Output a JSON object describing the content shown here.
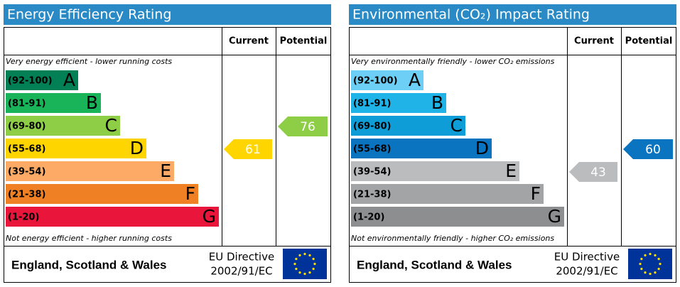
{
  "panels": [
    {
      "title": "Energy Efficiency Rating",
      "headers": [
        "Current",
        "Potential"
      ],
      "top_note": "Very energy efficient - lower running costs",
      "bottom_note": "Not energy efficient - higher running costs",
      "bands": [
        {
          "range": "(92-100)",
          "letter": "A",
          "color": "#008054"
        },
        {
          "range": "(81-91)",
          "letter": "B",
          "color": "#19b459"
        },
        {
          "range": "(69-80)",
          "letter": "C",
          "color": "#8dce46"
        },
        {
          "range": "(55-68)",
          "letter": "D",
          "color": "#ffd500"
        },
        {
          "range": "(39-54)",
          "letter": "E",
          "color": "#fcaa65"
        },
        {
          "range": "(21-38)",
          "letter": "F",
          "color": "#ef8023"
        },
        {
          "range": "(1-20)",
          "letter": "G",
          "color": "#e9153b"
        }
      ],
      "current": 61,
      "potential": 76,
      "footer": {
        "region": "England, Scotland & Wales",
        "directive": [
          "EU Directive",
          "2002/91/EC"
        ]
      }
    },
    {
      "title": "Environmental (CO₂) Impact Rating",
      "headers": [
        "Current",
        "Potential"
      ],
      "top_note": "Very environmentally friendly - lower CO₂ emissions",
      "bottom_note": "Not environmentally friendly - higher CO₂ emissions",
      "bands": [
        {
          "range": "(92-100)",
          "letter": "A",
          "color": "#6ecff6"
        },
        {
          "range": "(81-91)",
          "letter": "B",
          "color": "#1fb3e8"
        },
        {
          "range": "(69-80)",
          "letter": "C",
          "color": "#0f9dd8"
        },
        {
          "range": "(55-68)",
          "letter": "D",
          "color": "#0b74c0"
        },
        {
          "range": "(39-54)",
          "letter": "E",
          "color": "#bbbcbe"
        },
        {
          "range": "(21-38)",
          "letter": "F",
          "color": "#a3a4a6"
        },
        {
          "range": "(1-20)",
          "letter": "G",
          "color": "#8d8e90"
        }
      ],
      "current": 43,
      "potential": 60,
      "footer": {
        "region": "England, Scotland & Wales",
        "directive": [
          "EU Directive",
          "2002/91/EC"
        ]
      }
    }
  ]
}
